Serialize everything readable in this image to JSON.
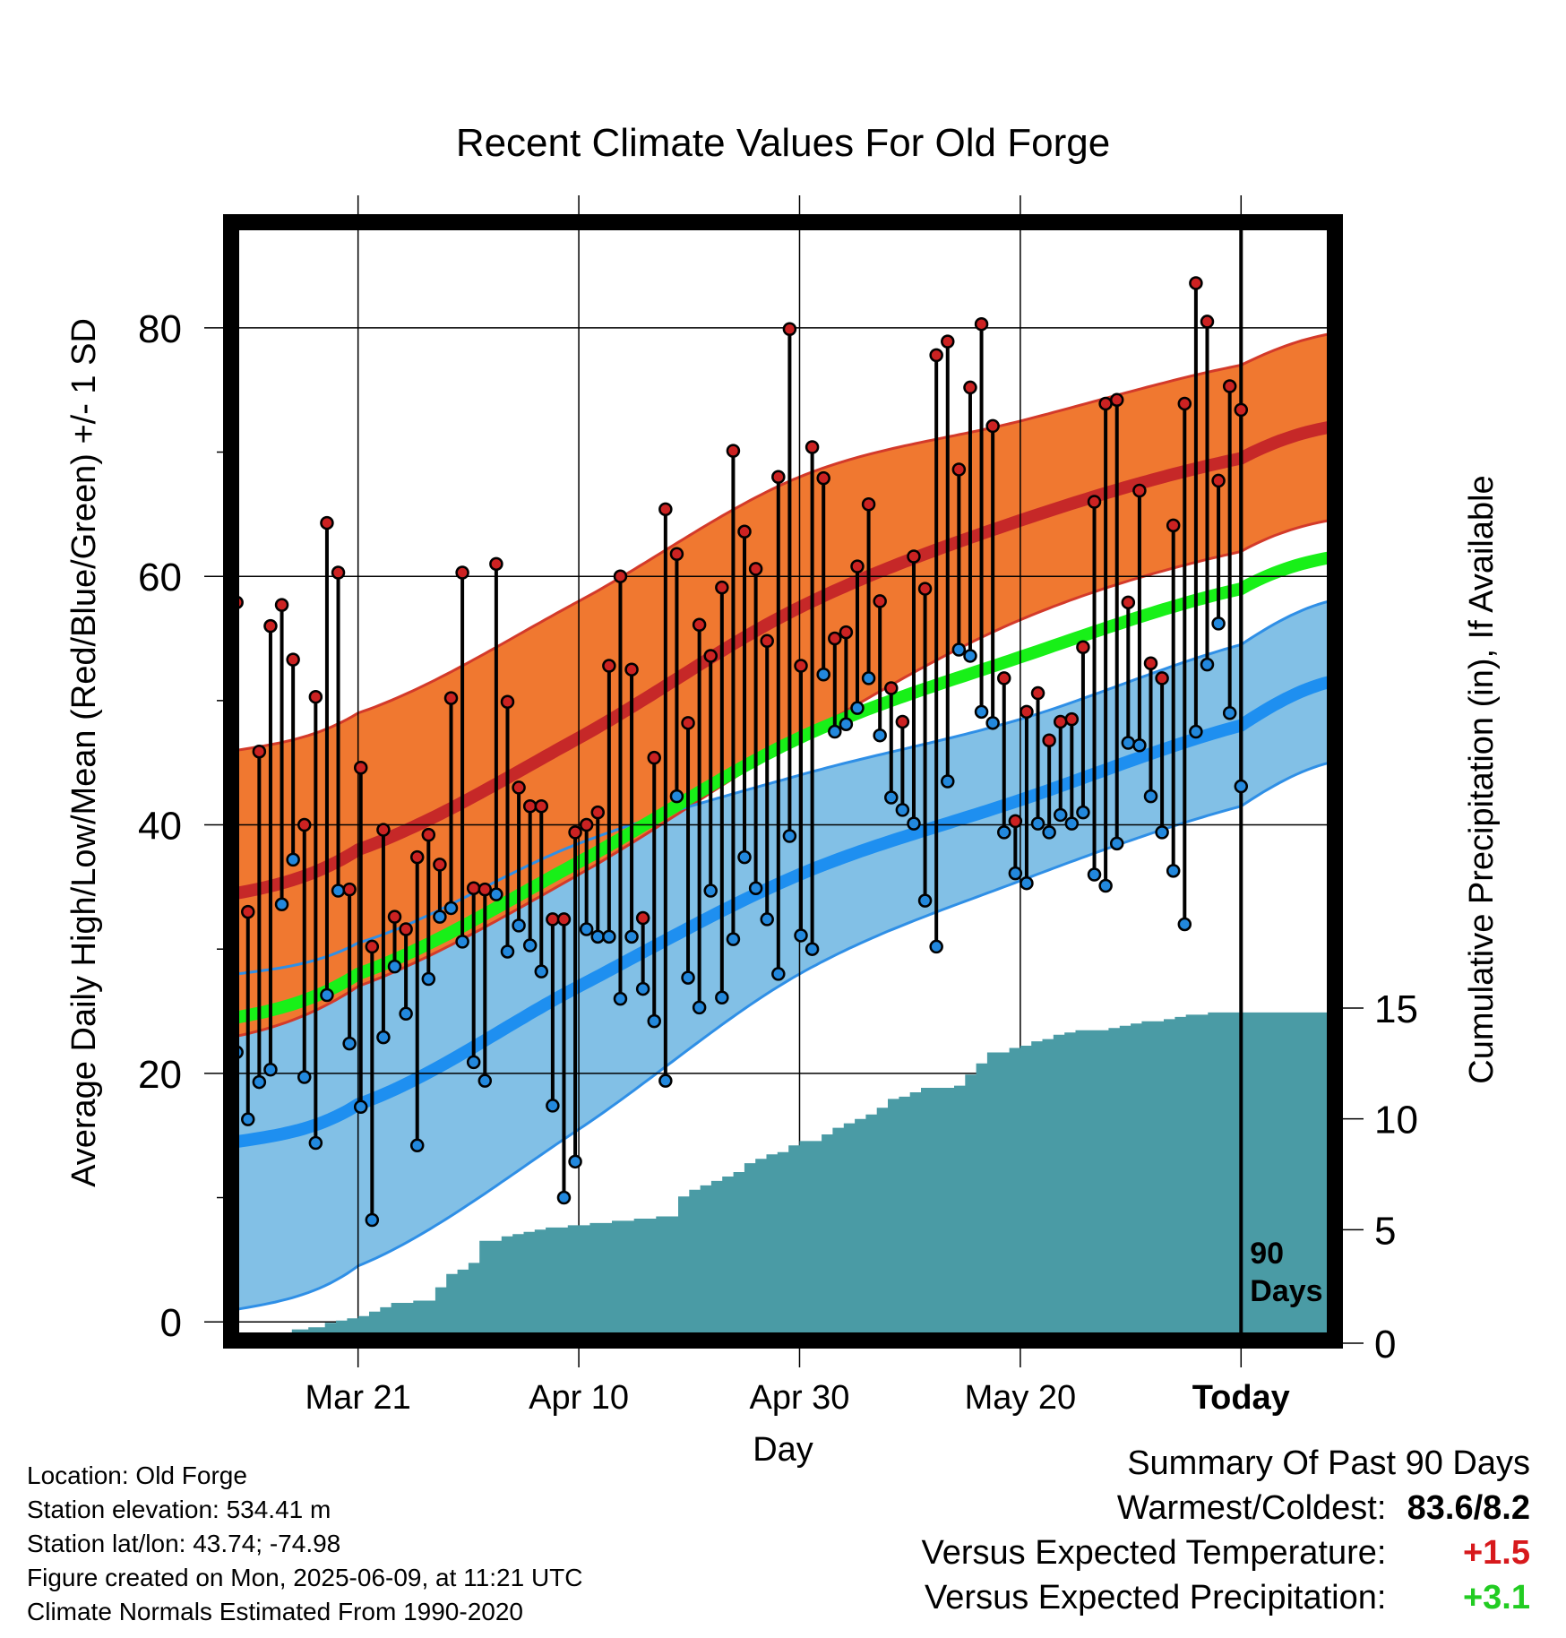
{
  "chart_data": {
    "type": "line",
    "title": "Recent Climate Values For Old Forge",
    "xlabel": "Day",
    "ylabel": "Average Daily High/Low/Mean (Red/Blue/Green) +/- 1 SD",
    "y2label": "Cumulative Precipitation (in), If Available",
    "x_ticks": [
      "Mar 21",
      "Apr 10",
      "Apr 30",
      "May 20",
      "Today"
    ],
    "x_tick_days": [
      0,
      20,
      40,
      60,
      80
    ],
    "x_start_day": -11.5,
    "x_end_day": 88.5,
    "ylim": [
      -1.5,
      88.5
    ],
    "y_ticks": [
      0,
      20,
      40,
      60,
      80
    ],
    "y2_ticks": [
      0,
      5,
      10,
      15
    ],
    "y2_range_at_axis": [
      0,
      15
    ],
    "today_label": "90 Days",
    "colors": {
      "high_band": "#f07830",
      "high_mean": "#c62828",
      "low_band": "#82c0e6",
      "low_mean": "#1e8ff0",
      "mean": "#18f018",
      "precip": "#4a9ba5",
      "high_point": "#cc2222",
      "low_point": "#2288dd"
    },
    "normals": {
      "days": [
        -11,
        0,
        20,
        40,
        60,
        80,
        88
      ],
      "high_mean": [
        34.5,
        38,
        47,
        57.5,
        64.5,
        69.5,
        72
      ],
      "high_sd": [
        11.5,
        11,
        11,
        10.5,
        8,
        7.5,
        7.5
      ],
      "low_mean": [
        14.5,
        17.5,
        27,
        36,
        42,
        48,
        51.5
      ],
      "low_sd": [
        13.5,
        13,
        11.5,
        8,
        6.5,
        6.5,
        6.5
      ],
      "mean": [
        24.5,
        28,
        37,
        47,
        53.5,
        59,
        61.5
      ]
    },
    "series": [
      {
        "name": "High",
        "values": [
          57.9,
          33,
          45.9,
          56,
          57.7,
          53.3,
          40,
          50.3,
          64.3,
          60.3,
          34.8,
          44.6,
          30.2,
          39.6,
          32.6,
          31.6,
          37.4,
          39.2,
          36.8,
          50.2,
          60.3,
          34.9,
          34.8,
          61,
          49.9,
          43,
          41.5,
          41.5,
          32.4,
          32.4,
          39.4,
          40,
          41,
          52.8,
          60,
          52.5,
          32.5,
          45.4,
          65.4,
          61.8,
          48.2,
          56.1,
          53.6,
          59.1,
          70.1,
          63.6,
          60.6,
          54.8,
          68,
          79.9,
          52.8,
          70.4,
          67.9,
          55,
          55.5,
          60.8,
          65.8,
          58,
          51,
          48.3,
          61.6,
          59,
          77.8,
          78.9,
          68.6,
          75.2,
          80.3,
          72.1,
          51.8,
          40.3,
          49.1,
          50.6,
          46.8,
          48.3,
          48.5,
          54.3,
          66,
          73.9,
          74.2,
          57.9,
          66.9,
          53,
          51.8,
          64.1,
          73.9,
          83.6,
          80.5,
          67.7,
          75.3,
          73.4
        ]
      },
      {
        "name": "Low",
        "values": [
          21.7,
          16.3,
          19.3,
          20.3,
          33.6,
          37.2,
          19.7,
          14.4,
          26.3,
          34.7,
          22.4,
          17.3,
          8.2,
          22.9,
          28.6,
          24.8,
          14.2,
          27.6,
          32.6,
          33.3,
          30.6,
          20.9,
          19.4,
          34.4,
          29.8,
          31.9,
          30.3,
          28.2,
          17.4,
          10,
          12.9,
          31.6,
          31,
          31,
          26,
          31,
          26.8,
          24.2,
          19.4,
          42.3,
          27.7,
          25.3,
          34.7,
          26.1,
          30.8,
          37.4,
          34.9,
          32.4,
          28,
          39.1,
          31.1,
          30,
          52.1,
          47.5,
          48.1,
          49.4,
          51.8,
          47.2,
          42.2,
          41.2,
          40.1,
          33.9,
          30.2,
          43.5,
          54.1,
          53.6,
          49.1,
          48.2,
          39.4,
          36.1,
          35.3,
          40.1,
          39.4,
          40.8,
          40.1,
          41,
          36,
          35.1,
          38.5,
          46.6,
          46.4,
          42.3,
          39.4,
          36.3,
          32,
          47.5,
          52.9,
          56.2,
          49,
          43.1
        ]
      }
    ],
    "precip_cumulative": {
      "days": [
        -11.5,
        -6.5,
        -6,
        -4.5,
        -3,
        -2,
        -1,
        0,
        1,
        2,
        3,
        4,
        5,
        6,
        7,
        8,
        9,
        10,
        11,
        12,
        13,
        14,
        15,
        16,
        17,
        18,
        19,
        20,
        21,
        22,
        23,
        24,
        25,
        26,
        27,
        28,
        29,
        30,
        31,
        32,
        33,
        34,
        35,
        36,
        37,
        38,
        39,
        40,
        41,
        42,
        43,
        44,
        45,
        46,
        47,
        48,
        49,
        50,
        51,
        52,
        53,
        54,
        55,
        56,
        57,
        58,
        59,
        60,
        61,
        62,
        63,
        64,
        65,
        66,
        67,
        68,
        69,
        70,
        71,
        72,
        73,
        74,
        75,
        76,
        77,
        78,
        79,
        80,
        88.5
      ],
      "values": [
        0,
        0,
        0.5,
        0.6,
        0.8,
        0.9,
        1.0,
        1.1,
        1.3,
        1.5,
        1.7,
        1.7,
        1.8,
        1.8,
        2.4,
        3.0,
        3.2,
        3.5,
        4.5,
        4.5,
        4.7,
        4.8,
        4.9,
        5.0,
        5.1,
        5.1,
        5.2,
        5.2,
        5.3,
        5.3,
        5.4,
        5.4,
        5.5,
        5.5,
        5.6,
        5.6,
        6.5,
        6.8,
        7.0,
        7.2,
        7.4,
        7.6,
        8.0,
        8.2,
        8.4,
        8.5,
        8.8,
        9.0,
        9.0,
        9.3,
        9.6,
        9.8,
        10.0,
        10.2,
        10.5,
        10.9,
        11.0,
        11.2,
        11.4,
        11.4,
        11.4,
        11.5,
        12.0,
        12.5,
        13.0,
        13.0,
        13.2,
        13.3,
        13.5,
        13.6,
        13.8,
        13.9,
        14.0,
        14.0,
        14.0,
        14.1,
        14.2,
        14.3,
        14.4,
        14.4,
        14.5,
        14.6,
        14.7,
        14.7,
        14.8,
        14.8,
        14.8,
        14.8,
        14.8
      ]
    }
  },
  "station_info": {
    "location": "Location: Old Forge",
    "elevation": "Station elevation: 534.41 m",
    "latlon": "Station lat/lon: 43.74; -74.98",
    "created": "Figure created on Mon, 2025-06-09, at 11:21 UTC",
    "normals": "Climate Normals Estimated From 1990-2020"
  },
  "summary": {
    "title": "Summary Of Past 90 Days",
    "warmest_coldest_label": "Warmest/Coldest:",
    "warmest_coldest_value": "83.6/8.2",
    "temp_label": "Versus Expected Temperature:",
    "temp_value": "+1.5",
    "precip_label": "Versus Expected Precipitation:",
    "precip_value": "+3.1"
  }
}
